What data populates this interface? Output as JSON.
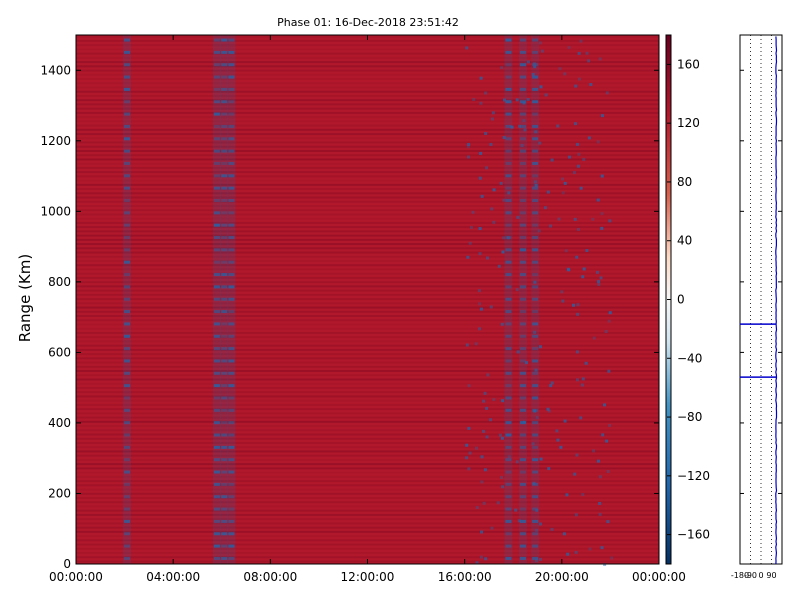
{
  "chart_data": [
    {
      "type": "heatmap",
      "title": "Phase 01: 16-Dec-2018 23:51:42",
      "ylabel": "Range (Km)",
      "xlabel": "",
      "x_ticks": [
        "00:00:00",
        "04:00:00",
        "08:00:00",
        "12:00:00",
        "16:00:00",
        "20:00:00",
        "00:00:00"
      ],
      "x_tick_hours": [
        0,
        4,
        8,
        12,
        16,
        20,
        24
      ],
      "xlim_hours": [
        0,
        24
      ],
      "y_ticks": [
        0,
        200,
        400,
        600,
        800,
        1000,
        1200,
        1400
      ],
      "ylim": [
        0,
        1500
      ],
      "colorbar": {
        "ticks": [
          -160,
          -120,
          -80,
          -40,
          0,
          40,
          80,
          120,
          160
        ],
        "range": [
          -180,
          180
        ],
        "colormap": "RdBu_r",
        "low_color": "#053061",
        "mid_color": "#f7f7f7",
        "high_color": "#67001f"
      },
      "dominant_value_approx": 140,
      "background_color": "#b2182b",
      "negative_bands_hours": [
        2.1,
        5.8,
        6.1,
        6.4,
        17.8,
        18.4,
        18.9
      ],
      "grid": false
    },
    {
      "type": "line",
      "title": "",
      "x_tick_labels": [
        "-180",
        "-90",
        "0",
        "90"
      ],
      "x_ticks": [
        -180,
        -90,
        0,
        90
      ],
      "xlim": [
        -180,
        180
      ],
      "ylim": [
        0,
        1500
      ],
      "line_color": "#0000cc",
      "baseline_x": 130,
      "spikes_range_km": [
        680,
        530
      ],
      "grid": "vertical dotted"
    }
  ]
}
